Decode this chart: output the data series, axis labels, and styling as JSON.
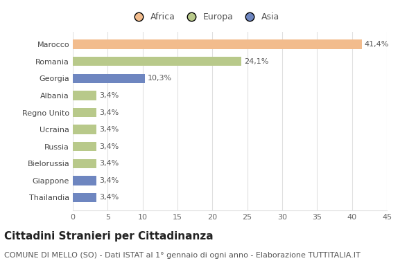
{
  "categories": [
    "Marocco",
    "Romania",
    "Georgia",
    "Albania",
    "Regno Unito",
    "Ucraina",
    "Russia",
    "Bielorussia",
    "Giappone",
    "Thailandia"
  ],
  "values": [
    41.4,
    24.1,
    10.3,
    3.4,
    3.4,
    3.4,
    3.4,
    3.4,
    3.4,
    3.4
  ],
  "labels": [
    "41,4%",
    "24,1%",
    "10,3%",
    "3,4%",
    "3,4%",
    "3,4%",
    "3,4%",
    "3,4%",
    "3,4%",
    "3,4%"
  ],
  "colors": [
    "#f2bc8d",
    "#b8c98a",
    "#6e86c0",
    "#b8c98a",
    "#b8c98a",
    "#b8c98a",
    "#b8c98a",
    "#b8c98a",
    "#6e86c0",
    "#6e86c0"
  ],
  "legend": [
    {
      "label": "Africa",
      "color": "#f2bc8d"
    },
    {
      "label": "Europa",
      "color": "#b8c98a"
    },
    {
      "label": "Asia",
      "color": "#6e86c0"
    }
  ],
  "xlim": [
    0,
    45
  ],
  "xticks": [
    0,
    5,
    10,
    15,
    20,
    25,
    30,
    35,
    40,
    45
  ],
  "title": "Cittadini Stranieri per Cittadinanza",
  "subtitle": "COMUNE DI MELLO (SO) - Dati ISTAT al 1° gennaio di ogni anno - Elaborazione TUTTITALIA.IT",
  "background_color": "#ffffff",
  "grid_color": "#e0e0e0",
  "title_fontsize": 11,
  "subtitle_fontsize": 8,
  "label_fontsize": 8,
  "tick_fontsize": 8,
  "legend_fontsize": 9
}
